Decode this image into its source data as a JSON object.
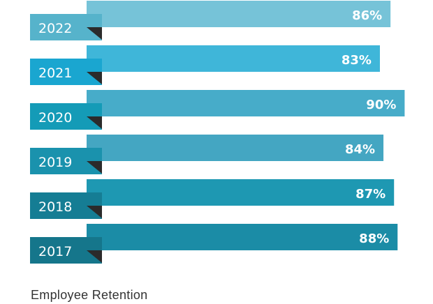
{
  "chart_data": {
    "type": "bar",
    "orientation": "horizontal",
    "categories": [
      "2022",
      "2021",
      "2020",
      "2019",
      "2018",
      "2017"
    ],
    "values": [
      86,
      83,
      90,
      84,
      87,
      88
    ],
    "value_labels": [
      "86%",
      "83%",
      "90%",
      "84%",
      "87%",
      "88%"
    ],
    "unit": "%",
    "caption": "Employee Retention",
    "colors": {
      "bars": [
        "#76c3d8",
        "#3fb6d9",
        "#47acc9",
        "#44a6c2",
        "#1e98b2",
        "#1b8ca6"
      ],
      "tabs": [
        "#56b3cb",
        "#1aa6d0",
        "#149bb7",
        "#1a92ad",
        "#157d94",
        "#15768b"
      ],
      "fold": "#2b2b2b"
    },
    "grid": false,
    "legend": "none"
  }
}
